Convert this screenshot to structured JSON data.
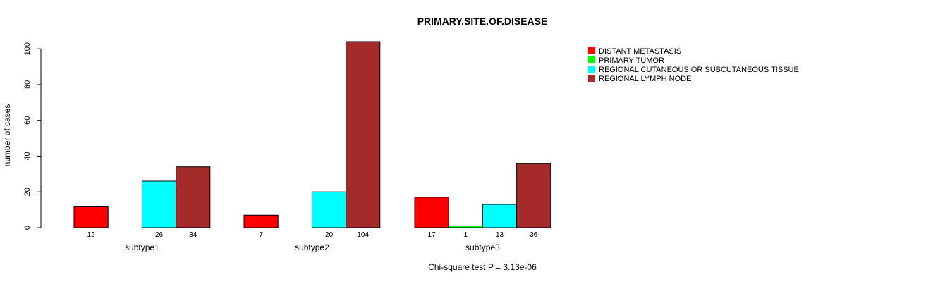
{
  "chart_data": {
    "type": "bar",
    "title": "PRIMARY.SITE.OF.DISEASE",
    "ylabel": "number of cases",
    "xlabel": "",
    "caption": "Chi-square test P = 3.13e-06",
    "ylim": [
      0,
      104
    ],
    "yticks": [
      0,
      20,
      40,
      60,
      80,
      100
    ],
    "categories": [
      "subtype1",
      "subtype2",
      "subtype3"
    ],
    "series": [
      {
        "name": "DISTANT METASTASIS",
        "color": "#ff0000",
        "values": [
          12,
          7,
          17
        ]
      },
      {
        "name": "PRIMARY TUMOR",
        "color": "#00ff00",
        "values": [
          0,
          0,
          1
        ]
      },
      {
        "name": "REGIONAL CUTANEOUS OR SUBCUTANEOUS TISSUE",
        "color": "#00ffff",
        "values": [
          26,
          20,
          13
        ]
      },
      {
        "name": "REGIONAL LYMPH NODE",
        "color": "#a52a2a",
        "values": [
          34,
          104,
          36
        ]
      }
    ],
    "bar_labels": [
      [
        "12",
        "",
        "26",
        "34"
      ],
      [
        "7",
        "",
        "20",
        "104"
      ],
      [
        "17",
        "1",
        "13",
        "36"
      ]
    ],
    "legend_position": "top-right",
    "grid": false
  }
}
